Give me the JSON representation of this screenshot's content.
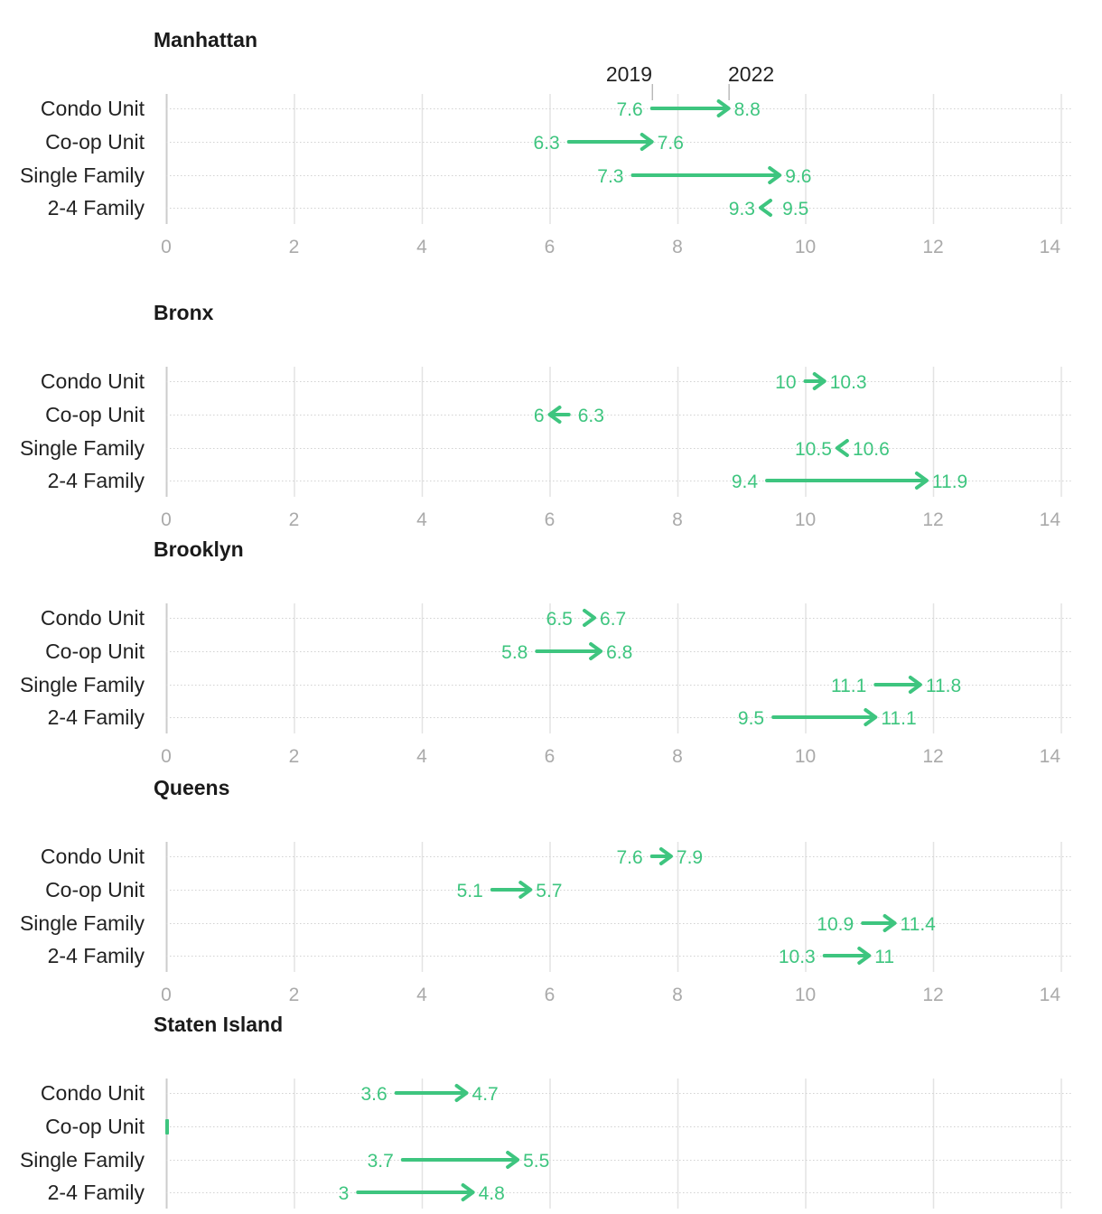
{
  "chart_data": {
    "type": "arrow",
    "legend": {
      "start_label": "2019",
      "end_label": "2022"
    },
    "colors": {
      "increase": "#3ec57f",
      "decrease": "#3ec57f",
      "grid": "#e3e3e3",
      "axis_zero": "#cccccc",
      "tick": "#aaaaaa"
    },
    "xlim": [
      0,
      14
    ],
    "xticks": [
      0,
      2,
      4,
      6,
      8,
      10,
      12,
      14
    ],
    "categories": [
      "Condo Unit",
      "Co-op Unit",
      "Single Family",
      "2-4 Family"
    ],
    "panels": [
      {
        "title": "Manhattan",
        "rows": [
          {
            "label": "Condo Unit",
            "start": 7.6,
            "end": 8.8,
            "start_label": "7.6",
            "end_label": "8.8"
          },
          {
            "label": "Co-op Unit",
            "start": 6.3,
            "end": 7.6,
            "start_label": "6.3",
            "end_label": "7.6"
          },
          {
            "label": "Single Family",
            "start": 7.3,
            "end": 9.6,
            "start_label": "7.3",
            "end_label": "9.6"
          },
          {
            "label": "2-4 Family",
            "start": 9.5,
            "end": 9.3,
            "start_label": "9.5",
            "end_label": "9.3"
          }
        ]
      },
      {
        "title": "Bronx",
        "rows": [
          {
            "label": "Condo Unit",
            "start": 10,
            "end": 10.3,
            "start_label": "10",
            "end_label": "10.3"
          },
          {
            "label": "Co-op Unit",
            "start": 6.3,
            "end": 6,
            "start_label": "6.3",
            "end_label": "6"
          },
          {
            "label": "Single Family",
            "start": 10.6,
            "end": 10.5,
            "start_label": "10.6",
            "end_label": "10.5"
          },
          {
            "label": "2-4 Family",
            "start": 9.4,
            "end": 11.9,
            "start_label": "9.4",
            "end_label": "11.9"
          }
        ]
      },
      {
        "title": "Brooklyn",
        "rows": [
          {
            "label": "Condo Unit",
            "start": 6.5,
            "end": 6.7,
            "start_label": "6.5",
            "end_label": "6.7"
          },
          {
            "label": "Co-op Unit",
            "start": 5.8,
            "end": 6.8,
            "start_label": "5.8",
            "end_label": "6.8"
          },
          {
            "label": "Single Family",
            "start": 11.1,
            "end": 11.8,
            "start_label": "11.1",
            "end_label": "11.8"
          },
          {
            "label": "2-4 Family",
            "start": 9.5,
            "end": 11.1,
            "start_label": "9.5",
            "end_label": "11.1"
          }
        ]
      },
      {
        "title": "Queens",
        "rows": [
          {
            "label": "Condo Unit",
            "start": 7.6,
            "end": 7.9,
            "start_label": "7.6",
            "end_label": "7.9"
          },
          {
            "label": "Co-op Unit",
            "start": 5.1,
            "end": 5.7,
            "start_label": "5.1",
            "end_label": "5.7"
          },
          {
            "label": "Single Family",
            "start": 10.9,
            "end": 11.4,
            "start_label": "10.9",
            "end_label": "11.4"
          },
          {
            "label": "2-4 Family",
            "start": 10.3,
            "end": 11,
            "start_label": "10.3",
            "end_label": "11"
          }
        ]
      },
      {
        "title": "Staten Island",
        "rows": [
          {
            "label": "Condo Unit",
            "start": 3.6,
            "end": 4.7,
            "start_label": "3.6",
            "end_label": "4.7"
          },
          {
            "label": "Co-op Unit",
            "start": 0,
            "end": 0,
            "start_label": "",
            "end_label": ""
          },
          {
            "label": "Single Family",
            "start": 3.7,
            "end": 5.5,
            "start_label": "3.7",
            "end_label": "5.5"
          },
          {
            "label": "2-4 Family",
            "start": 3,
            "end": 4.8,
            "start_label": "3",
            "end_label": "4.8"
          }
        ]
      }
    ]
  }
}
